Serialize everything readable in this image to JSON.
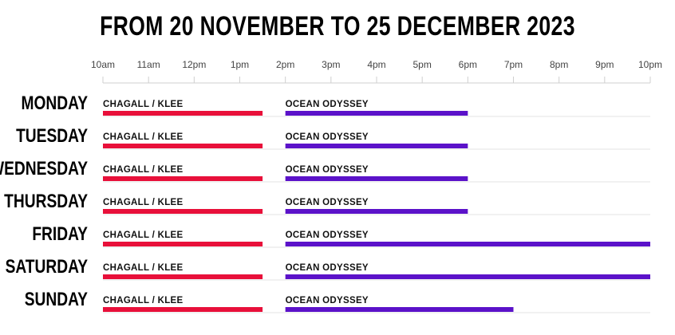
{
  "title": "FROM 20 NOVEMBER TO 25 DECEMBER 2023",
  "chart_data": {
    "type": "bar",
    "orientation": "horizontal-timeline",
    "title": "FROM 20 NOVEMBER TO 25 DECEMBER 2023",
    "x_ticks": [
      "10am",
      "11am",
      "12pm",
      "1pm",
      "2pm",
      "3pm",
      "4pm",
      "5pm",
      "6pm",
      "7pm",
      "8pm",
      "9pm",
      "10pm"
    ],
    "xlim": [
      10,
      22
    ],
    "grid": false,
    "colors": {
      "CHAGALL / KLEE": "#e8103a",
      "OCEAN ODYSSEY": "#5b12c9"
    },
    "rows": [
      {
        "day": "MONDAY",
        "bars": [
          {
            "label": "CHAGALL / KLEE",
            "start": 10,
            "end": 13.5
          },
          {
            "label": "OCEAN ODYSSEY",
            "start": 14,
            "end": 18
          }
        ]
      },
      {
        "day": "TUESDAY",
        "bars": [
          {
            "label": "CHAGALL / KLEE",
            "start": 10,
            "end": 13.5
          },
          {
            "label": "OCEAN ODYSSEY",
            "start": 14,
            "end": 18
          }
        ]
      },
      {
        "day": "WEDNESDAY",
        "bars": [
          {
            "label": "CHAGALL / KLEE",
            "start": 10,
            "end": 13.5
          },
          {
            "label": "OCEAN ODYSSEY",
            "start": 14,
            "end": 18
          }
        ]
      },
      {
        "day": "THURSDAY",
        "bars": [
          {
            "label": "CHAGALL / KLEE",
            "start": 10,
            "end": 13.5
          },
          {
            "label": "OCEAN ODYSSEY",
            "start": 14,
            "end": 18
          }
        ]
      },
      {
        "day": "FRIDAY",
        "bars": [
          {
            "label": "CHAGALL / KLEE",
            "start": 10,
            "end": 13.5
          },
          {
            "label": "OCEAN ODYSSEY",
            "start": 14,
            "end": 22
          }
        ]
      },
      {
        "day": "SATURDAY",
        "bars": [
          {
            "label": "CHAGALL / KLEE",
            "start": 10,
            "end": 13.5
          },
          {
            "label": "OCEAN ODYSSEY",
            "start": 14,
            "end": 22
          }
        ]
      },
      {
        "day": "SUNDAY",
        "bars": [
          {
            "label": "CHAGALL / KLEE",
            "start": 10,
            "end": 13.5
          },
          {
            "label": "OCEAN ODYSSEY",
            "start": 14,
            "end": 19
          }
        ]
      }
    ]
  }
}
